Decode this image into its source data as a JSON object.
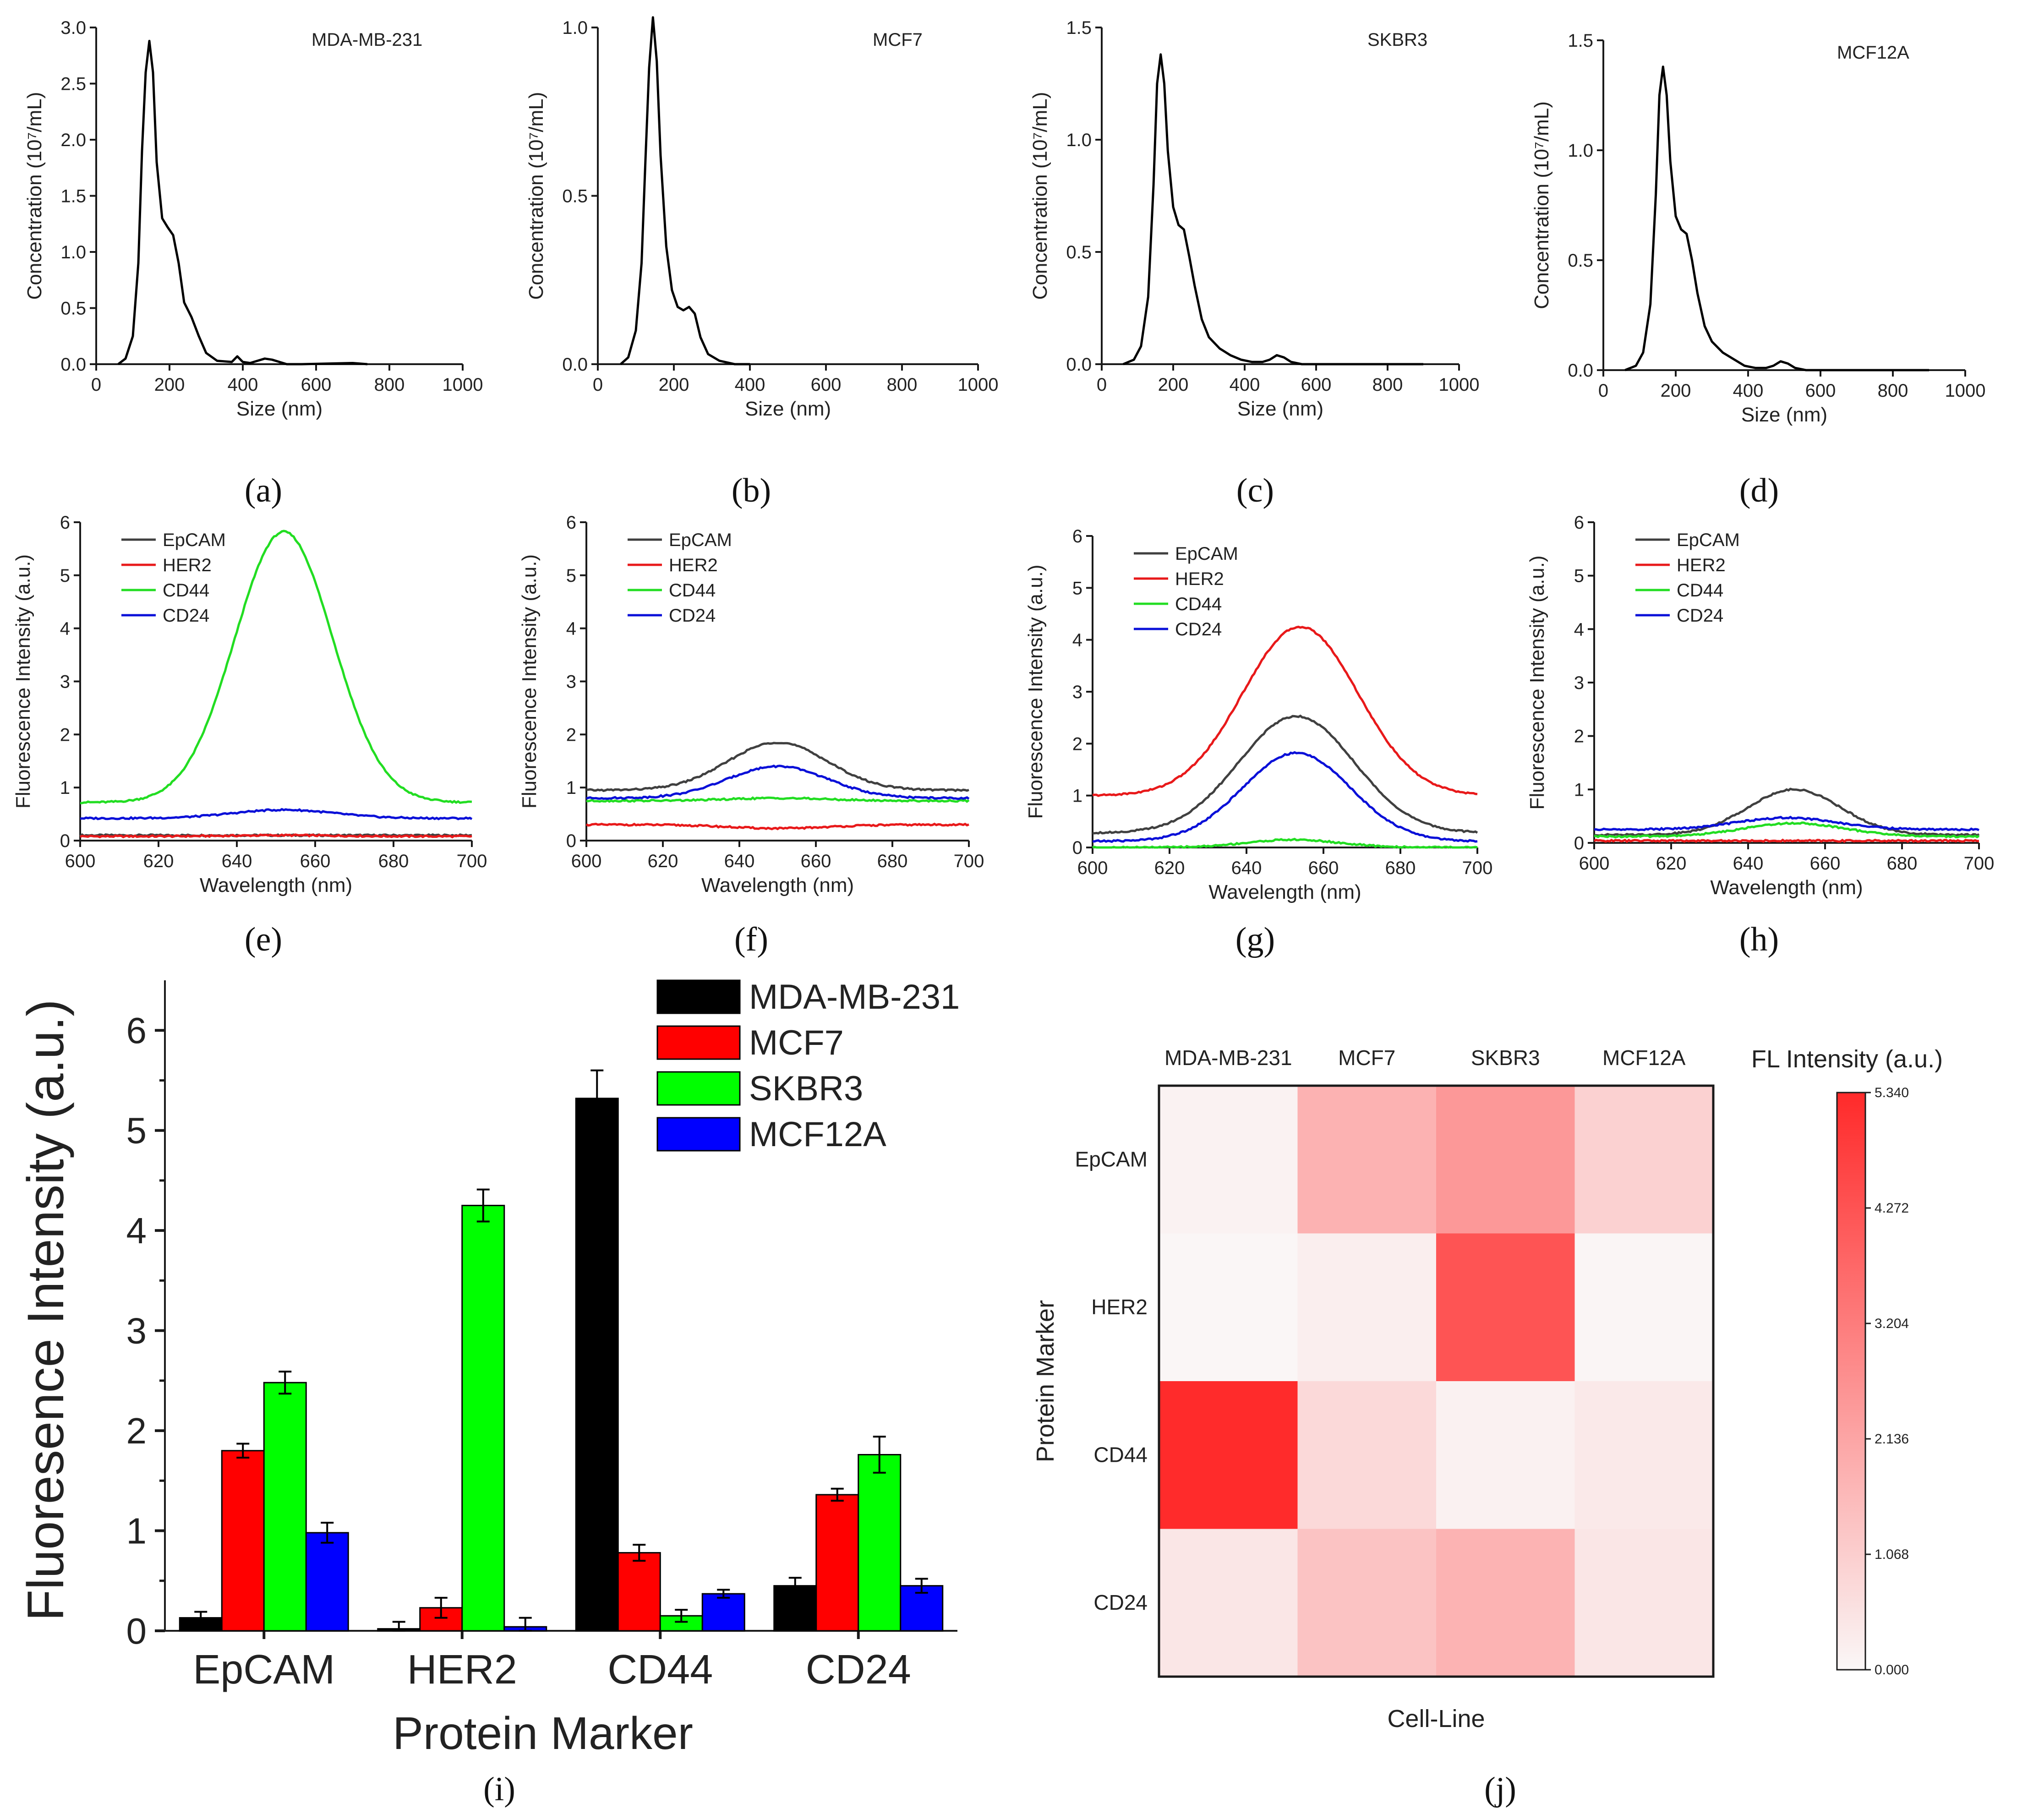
{
  "panel_labels": [
    "(a)",
    "(b)",
    "(c)",
    "(d)",
    "(e)",
    "(f)",
    "(g)",
    "(h)",
    "(i)",
    "(j)"
  ],
  "colors": {
    "axis": "#1a1a1a",
    "EpCAM": "#404040",
    "HER2": "#e8191a",
    "CD44": "#22dd22",
    "CD24": "#0a10d8",
    "MDA-MB-231": "#000000",
    "MCF7": "#ff0000",
    "SKBR3": "#00ff00",
    "MCF12A": "#0000ff",
    "heatmap_max": "#ff2a2a",
    "heatmap_min": "#faf7f7"
  },
  "chart_data": [
    {
      "id": "a",
      "type": "line",
      "title": "MDA-MB-231",
      "xlabel": "Size (nm)",
      "ylabel": "Concentration (10⁷/mL)",
      "xlim": [
        0,
        1000
      ],
      "ylim": [
        0,
        3.0
      ],
      "xticks": [
        "0",
        "200",
        "400",
        "600",
        "800",
        "1000"
      ],
      "yticks": [
        "0.0",
        "0.5",
        "1.0",
        "1.5",
        "2.0",
        "2.5",
        "3.0"
      ],
      "series": [
        {
          "name": "size distribution",
          "x": [
            60,
            80,
            100,
            115,
            125,
            135,
            145,
            155,
            165,
            180,
            195,
            210,
            225,
            240,
            260,
            280,
            300,
            330,
            370,
            385,
            400,
            420,
            440,
            460,
            480,
            500,
            520,
            560,
            700,
            740
          ],
          "y": [
            0,
            0.05,
            0.25,
            0.9,
            1.9,
            2.6,
            2.88,
            2.6,
            1.8,
            1.3,
            1.22,
            1.15,
            0.9,
            0.55,
            0.42,
            0.25,
            0.1,
            0.03,
            0.02,
            0.07,
            0.02,
            0.01,
            0.03,
            0.05,
            0.04,
            0.02,
            0,
            0,
            0.01,
            0
          ]
        }
      ]
    },
    {
      "id": "b",
      "type": "line",
      "title": "MCF7",
      "xlabel": "Size (nm)",
      "ylabel": "Concentration (10⁷/mL)",
      "xlim": [
        0,
        1000
      ],
      "ylim": [
        0,
        1.0
      ],
      "xticks": [
        "0",
        "200",
        "400",
        "600",
        "800",
        "1000"
      ],
      "yticks": [
        "0.0",
        "0.5",
        "1.0"
      ],
      "series": [
        {
          "name": "size distribution",
          "x": [
            60,
            80,
            100,
            115,
            125,
            135,
            145,
            155,
            165,
            180,
            195,
            210,
            225,
            240,
            255,
            270,
            290,
            320,
            360,
            400
          ],
          "y": [
            0,
            0.02,
            0.1,
            0.3,
            0.6,
            0.88,
            1.03,
            0.9,
            0.62,
            0.35,
            0.22,
            0.17,
            0.16,
            0.17,
            0.15,
            0.08,
            0.03,
            0.01,
            0,
            0
          ]
        }
      ]
    },
    {
      "id": "c",
      "type": "line",
      "title": "SKBR3",
      "xlabel": "Size (nm)",
      "ylabel": "Concentration (10⁷/mL)",
      "xlim": [
        0,
        1000
      ],
      "ylim": [
        0,
        1.5
      ],
      "xticks": [
        "0",
        "200",
        "400",
        "600",
        "800",
        "1000"
      ],
      "yticks": [
        "0.0",
        "0.5",
        "1.0",
        "1.5"
      ],
      "series": [
        {
          "name": "size distribution",
          "x": [
            60,
            90,
            110,
            130,
            145,
            155,
            165,
            175,
            185,
            200,
            215,
            230,
            245,
            260,
            280,
            300,
            330,
            360,
            390,
            420,
            450,
            470,
            490,
            510,
            530,
            560,
            700,
            900
          ],
          "y": [
            0,
            0.02,
            0.08,
            0.3,
            0.8,
            1.25,
            1.38,
            1.25,
            0.95,
            0.7,
            0.62,
            0.6,
            0.48,
            0.35,
            0.2,
            0.12,
            0.07,
            0.04,
            0.02,
            0.01,
            0.01,
            0.02,
            0.04,
            0.03,
            0.01,
            0,
            0,
            0
          ]
        }
      ]
    },
    {
      "id": "d",
      "type": "line",
      "title": "MCF12A",
      "xlabel": "Size (nm)",
      "ylabel": "Concentration (10⁷/mL)",
      "xlim": [
        0,
        1000
      ],
      "ylim": [
        0,
        1.5
      ],
      "xticks": [
        "0",
        "200",
        "400",
        "600",
        "800",
        "1000"
      ],
      "yticks": [
        "0.0",
        "0.5",
        "1.0",
        "1.5"
      ],
      "series": [
        {
          "name": "size distribution",
          "x": [
            60,
            90,
            110,
            130,
            145,
            155,
            165,
            175,
            185,
            200,
            215,
            230,
            245,
            260,
            280,
            300,
            330,
            360,
            390,
            420,
            450,
            470,
            490,
            510,
            530,
            560,
            700,
            900
          ],
          "y": [
            0,
            0.02,
            0.08,
            0.3,
            0.8,
            1.25,
            1.38,
            1.25,
            0.95,
            0.7,
            0.64,
            0.62,
            0.5,
            0.35,
            0.2,
            0.13,
            0.08,
            0.05,
            0.02,
            0.01,
            0.01,
            0.02,
            0.04,
            0.03,
            0.01,
            0,
            0,
            0
          ]
        }
      ]
    },
    {
      "id": "e",
      "type": "line",
      "xlabel": "Wavelength (nm)",
      "ylabel": "Fluorescence Intensity (a.u.)",
      "xlim": [
        600,
        700
      ],
      "ylim": [
        0,
        6
      ],
      "xticks": [
        "600",
        "620",
        "640",
        "660",
        "680",
        "700"
      ],
      "yticks": [
        "0",
        "1",
        "2",
        "3",
        "4",
        "5",
        "6"
      ],
      "legend": [
        "EpCAM",
        "HER2",
        "CD44",
        "CD24"
      ],
      "series": [
        {
          "name": "EpCAM",
          "baseline": 0.1,
          "peak": 0.0,
          "center": 652,
          "width": 13
        },
        {
          "name": "HER2",
          "baseline": 0.08,
          "peak": 0.02,
          "center": 652,
          "width": 13
        },
        {
          "name": "CD44",
          "baseline": 0.72,
          "peak": 5.1,
          "center": 652,
          "width": 12.5
        },
        {
          "name": "CD24",
          "baseline": 0.42,
          "peak": 0.16,
          "center": 652,
          "width": 13
        }
      ]
    },
    {
      "id": "f",
      "type": "line",
      "xlabel": "Wavelength (nm)",
      "ylabel": "Fluorescence Intensity (a.u.)",
      "xlim": [
        600,
        700
      ],
      "ylim": [
        0,
        6
      ],
      "xticks": [
        "600",
        "620",
        "640",
        "660",
        "680",
        "700"
      ],
      "yticks": [
        "0",
        "1",
        "2",
        "3",
        "4",
        "5",
        "6"
      ],
      "legend": [
        "EpCAM",
        "HER2",
        "CD44",
        "CD24"
      ],
      "series": [
        {
          "name": "EpCAM",
          "baseline": 0.95,
          "peak": 0.9,
          "center": 650,
          "width": 13
        },
        {
          "name": "HER2",
          "baseline": 0.3,
          "peak": -0.07,
          "center": 650,
          "width": 13
        },
        {
          "name": "CD44",
          "baseline": 0.75,
          "peak": 0.05,
          "center": 650,
          "width": 13
        },
        {
          "name": "CD24",
          "baseline": 0.8,
          "peak": 0.6,
          "center": 650,
          "width": 13
        }
      ]
    },
    {
      "id": "g",
      "type": "line",
      "xlabel": "Wavelength (nm)",
      "ylabel": "Fluorescence Intensity (a.u.)",
      "xlim": [
        600,
        700
      ],
      "ylim": [
        0,
        6
      ],
      "xticks": [
        "600",
        "620",
        "640",
        "660",
        "680",
        "700"
      ],
      "yticks": [
        "0",
        "1",
        "2",
        "3",
        "4",
        "5",
        "6"
      ],
      "legend": [
        "EpCAM",
        "HER2",
        "CD44",
        "CD24"
      ],
      "series": [
        {
          "name": "EpCAM",
          "baseline": 0.28,
          "peak": 2.25,
          "center": 653,
          "width": 15
        },
        {
          "name": "HER2",
          "baseline": 1.0,
          "peak": 3.25,
          "center": 654,
          "width": 15
        },
        {
          "name": "CD44",
          "baseline": 0.0,
          "peak": 0.15,
          "center": 652,
          "width": 12
        },
        {
          "name": "CD24",
          "baseline": 0.12,
          "peak": 1.7,
          "center": 653,
          "width": 14
        }
      ]
    },
    {
      "id": "h",
      "type": "line",
      "xlabel": "Wavelength (nm)",
      "ylabel": "Fluorescence Intensity (a.u.)",
      "xlim": [
        600,
        700
      ],
      "ylim": [
        0,
        6
      ],
      "xticks": [
        "600",
        "620",
        "640",
        "660",
        "680",
        "700"
      ],
      "yticks": [
        "0",
        "1",
        "2",
        "3",
        "4",
        "5",
        "6"
      ],
      "legend": [
        "EpCAM",
        "HER2",
        "CD44",
        "CD24"
      ],
      "series": [
        {
          "name": "EpCAM",
          "baseline": 0.15,
          "peak": 0.85,
          "center": 652,
          "width": 12
        },
        {
          "name": "HER2",
          "baseline": 0.04,
          "peak": 0.0,
          "center": 652,
          "width": 12
        },
        {
          "name": "CD44",
          "baseline": 0.12,
          "peak": 0.25,
          "center": 652,
          "width": 13
        },
        {
          "name": "CD24",
          "baseline": 0.25,
          "peak": 0.22,
          "center": 650,
          "width": 13
        }
      ]
    },
    {
      "id": "i",
      "type": "bar",
      "xlabel": "Protein Marker",
      "ylabel": "Fluoresence Intensity (a.u.)",
      "ylim": [
        0,
        6.5
      ],
      "yticks": [
        "0",
        "1",
        "2",
        "3",
        "4",
        "5",
        "6"
      ],
      "categories": [
        "EpCAM",
        "HER2",
        "CD44",
        "CD24"
      ],
      "series": [
        {
          "name": "MDA-MB-231",
          "values": [
            0.13,
            0.02,
            5.32,
            0.45
          ],
          "errors": [
            0.06,
            0.07,
            0.28,
            0.08
          ]
        },
        {
          "name": "MCF7",
          "values": [
            1.8,
            0.23,
            0.78,
            1.36
          ],
          "errors": [
            0.07,
            0.1,
            0.08,
            0.06
          ]
        },
        {
          "name": "SKBR3",
          "values": [
            2.48,
            4.25,
            0.15,
            1.76
          ],
          "errors": [
            0.11,
            0.16,
            0.06,
            0.18
          ]
        },
        {
          "name": "MCF12A",
          "values": [
            0.98,
            0.04,
            0.37,
            0.45
          ],
          "errors": [
            0.1,
            0.09,
            0.04,
            0.07
          ]
        }
      ]
    },
    {
      "id": "j",
      "type": "heatmap",
      "xlabel": "Cell-Line",
      "ylabel": "Protein Marker",
      "colorbar_title": "FL Intensity (a.u.)",
      "colorbar_ticks": [
        "5.340",
        "4.272",
        "3.204",
        "2.136",
        "1.068",
        "0.000"
      ],
      "vmin": 0,
      "vmax": 5.34,
      "x": [
        "MDA-MB-231",
        "MCF7",
        "SKBR3",
        "MCF12A"
      ],
      "y": [
        "EpCAM",
        "HER2",
        "CD44",
        "CD24"
      ],
      "values": [
        [
          0.13,
          1.8,
          2.48,
          0.98
        ],
        [
          0.02,
          0.23,
          4.25,
          0.04
        ],
        [
          5.32,
          0.78,
          0.15,
          0.37
        ],
        [
          0.45,
          1.36,
          1.76,
          0.45
        ]
      ]
    }
  ]
}
